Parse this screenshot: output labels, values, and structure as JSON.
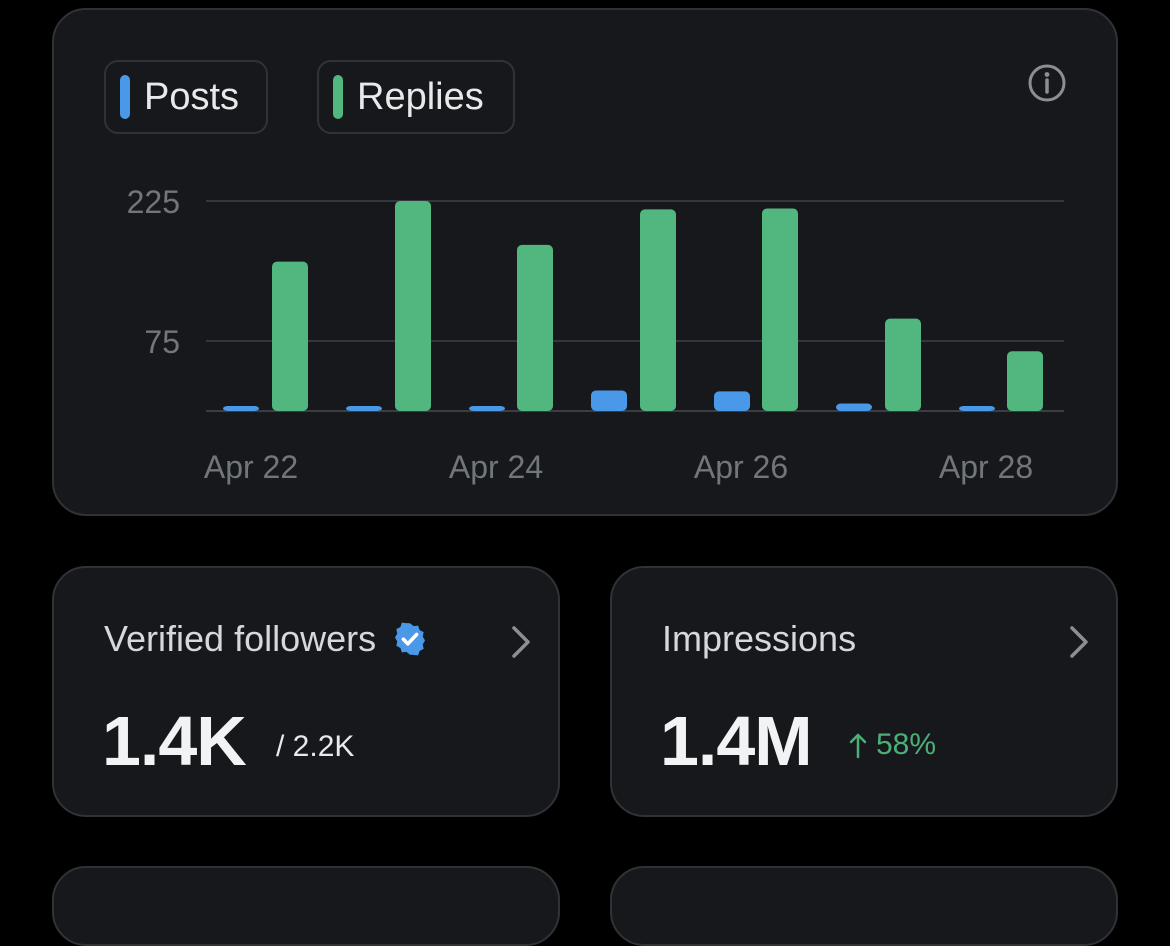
{
  "chart": {
    "legend": {
      "posts_label": "Posts",
      "replies_label": "Replies"
    },
    "info_icon": "info-circle-icon"
  },
  "chart_data": {
    "type": "bar",
    "categories": [
      "Apr 22",
      "Apr 23",
      "Apr 24",
      "Apr 25",
      "Apr 26",
      "Apr 27",
      "Apr 28"
    ],
    "series": [
      {
        "name": "Posts",
        "color": "#4a99e9",
        "values": [
          3,
          2,
          5,
          22,
          21,
          8,
          3
        ]
      },
      {
        "name": "Replies",
        "color": "#52b67f",
        "values": [
          160,
          225,
          178,
          216,
          217,
          99,
          64
        ]
      }
    ],
    "y_ticks": [
      225,
      75
    ],
    "y_tick_labels": [
      "225",
      "75"
    ],
    "x_tick_labels": [
      "Apr 22",
      "Apr 24",
      "Apr 26",
      "Apr 28"
    ],
    "ylim": [
      0,
      225
    ],
    "grid": true,
    "title": "",
    "xlabel": "",
    "ylabel": ""
  },
  "metrics": {
    "verified_followers": {
      "label": "Verified followers",
      "value": "1.4K",
      "total": "/ 2.2K",
      "badge_color": "#4a99e9"
    },
    "impressions": {
      "label": "Impressions",
      "value": "1.4M",
      "change": "58%",
      "change_color": "#4caf77"
    }
  }
}
